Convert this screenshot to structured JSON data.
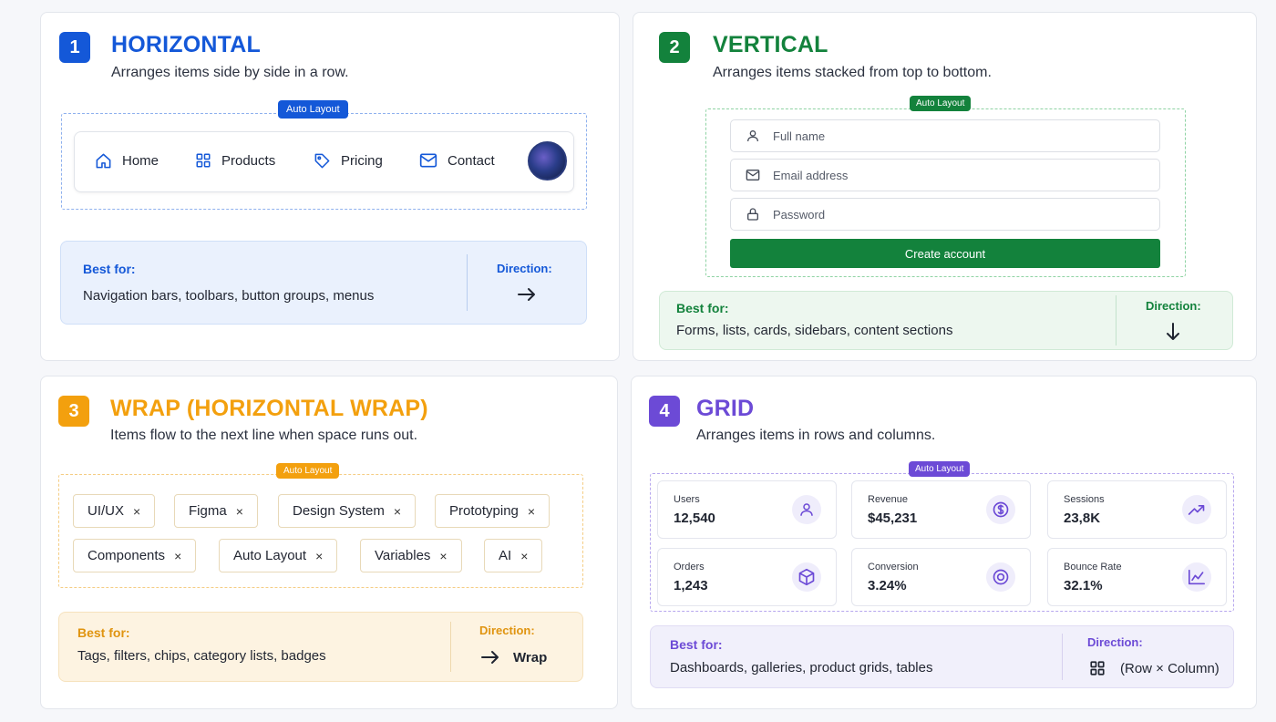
{
  "colors": {
    "blue": "#1458d8",
    "green": "#13823c",
    "orange": "#f3a00e",
    "purple": "#6c4ad6"
  },
  "horizontal": {
    "number": "1",
    "title": "HORIZONTAL",
    "subtitle": "Arranges items side by side in a row.",
    "badge": "Auto Layout",
    "nav": [
      {
        "label": "Home",
        "icon": "home-icon"
      },
      {
        "label": "Products",
        "icon": "grid-icon"
      },
      {
        "label": "Pricing",
        "icon": "tag-icon"
      },
      {
        "label": "Contact",
        "icon": "mail-icon"
      }
    ],
    "avatar_icon": "avatar",
    "best_for_label": "Best for:",
    "best_for": "Navigation bars, toolbars, button groups, menus",
    "direction_label": "Direction:",
    "direction_icon": "arrow-right-icon"
  },
  "vertical": {
    "number": "2",
    "title": "VERTICAL",
    "subtitle": "Arranges items stacked from top to bottom.",
    "badge": "Auto Layout",
    "fields": [
      {
        "placeholder": "Full name",
        "icon": "user-icon"
      },
      {
        "placeholder": "Email address",
        "icon": "mail-icon"
      },
      {
        "placeholder": "Password",
        "icon": "lock-icon"
      }
    ],
    "cta": "Create account",
    "best_for_label": "Best for:",
    "best_for": "Forms, lists, cards, sidebars, content sections",
    "direction_label": "Direction:",
    "direction_icon": "arrow-down-icon"
  },
  "wrap": {
    "number": "3",
    "title": "WRAP (HORIZONTAL WRAP)",
    "subtitle": "Items flow to the next line when space runs out.",
    "badge": "Auto Layout",
    "chips": [
      "UI/UX",
      "Figma",
      "Design System",
      "Prototyping",
      "Components",
      "Auto Layout",
      "Variables",
      "AI"
    ],
    "chip_close": "×",
    "best_for_label": "Best for:",
    "best_for": "Tags, filters, chips, category lists, badges",
    "direction_label": "Direction:",
    "direction_value": "Wrap",
    "direction_icon": "arrow-right-icon"
  },
  "grid": {
    "number": "4",
    "title": "GRID",
    "subtitle": "Arranges items in rows and columns.",
    "badge": "Auto Layout",
    "stats": [
      {
        "label": "Users",
        "value": "12,540",
        "icon": "user-icon"
      },
      {
        "label": "Revenue",
        "value": "$45,231",
        "icon": "dollar-icon"
      },
      {
        "label": "Sessions",
        "value": "23,8K",
        "icon": "trend-up-icon"
      },
      {
        "label": "Orders",
        "value": "1,243",
        "icon": "box-icon"
      },
      {
        "label": "Conversion",
        "value": "3.24%",
        "icon": "target-icon"
      },
      {
        "label": "Bounce Rate",
        "value": "32.1%",
        "icon": "line-chart-icon"
      }
    ],
    "best_for_label": "Best for:",
    "best_for": "Dashboards, galleries, product grids, tables",
    "direction_label": "Direction:",
    "direction_value": "(Row × Column)",
    "direction_icon": "grid-icon"
  }
}
